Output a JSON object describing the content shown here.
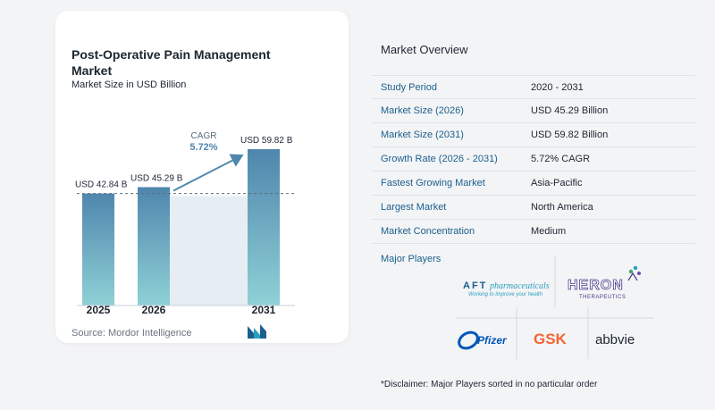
{
  "chart_data": {
    "type": "bar",
    "title": "Post-Operative Pain Management Market",
    "subtitle": "Market Size in USD Billion",
    "categories": [
      "2025",
      "2026",
      "2031"
    ],
    "values": [
      42.84,
      45.29,
      59.82
    ],
    "value_labels": [
      "USD 42.84 B",
      "USD 45.29 B",
      "USD 59.82 B"
    ],
    "cagr_label": "CAGR",
    "cagr_value": "5.72%",
    "colors": {
      "bar_top": "#4f86ad",
      "bar_bottom": "#8fd1d6",
      "band": "#e6eef4",
      "arrow": "#4f86ad"
    }
  },
  "source": "Source:  Mordor Intelligence",
  "overview": {
    "title": "Market Overview",
    "rows": [
      {
        "label": "Study Period",
        "value": "2020 - 2031"
      },
      {
        "label": "Market Size (2026)",
        "value": "USD 45.29 Billion"
      },
      {
        "label": "Market Size (2031)",
        "value": "USD 59.82 Billion"
      },
      {
        "label": "Growth Rate (2026 - 2031)",
        "value": "5.72% CAGR"
      },
      {
        "label": "Fastest Growing Market",
        "value": "Asia-Pacific"
      },
      {
        "label": "Largest Market",
        "value": "North America"
      },
      {
        "label": "Market Concentration",
        "value": "Medium"
      }
    ]
  },
  "players": {
    "title": "Major Players",
    "aft": {
      "brand": "AFT",
      "word": "pharmaceuticals",
      "tagline": "Working to improve your health"
    },
    "heron": {
      "brand": "HERON",
      "sub": "THERAPEUTICS"
    },
    "pfizer": "Pfizer",
    "gsk": "GSK",
    "abbvie": "abbvie"
  },
  "disclaimer": "*Disclaimer: Major Players sorted in no particular order"
}
